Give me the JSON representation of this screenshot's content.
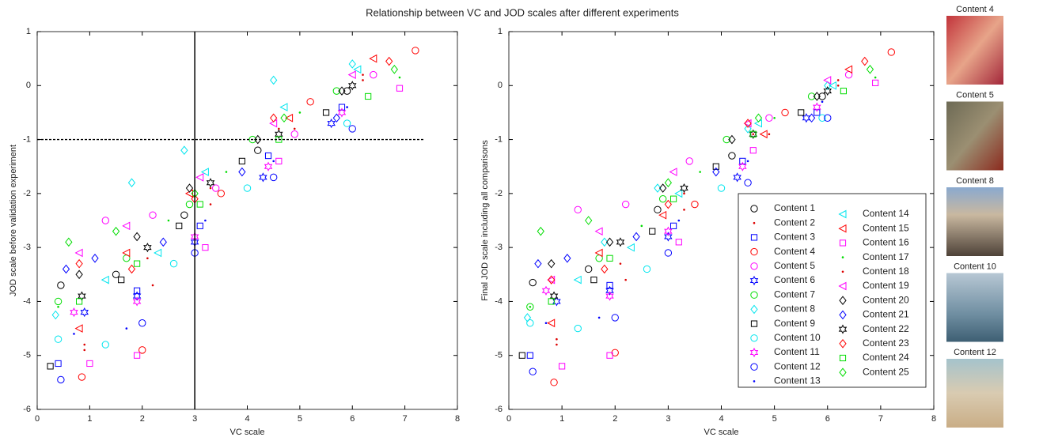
{
  "title": "Relationship between VC and JOD scales after different experiments",
  "chart_data": [
    {
      "type": "scatter",
      "xlabel": "VC scale",
      "ylabel": "JOD scale before validation experiment",
      "xlim": [
        0,
        8
      ],
      "ylim": [
        -6,
        1
      ],
      "xticks": [
        0,
        1,
        2,
        3,
        4,
        5,
        6,
        7,
        8
      ],
      "yticks": [
        -6,
        -5,
        -4,
        -3,
        -2,
        -1,
        0,
        1
      ],
      "vline": 3,
      "hline": -1,
      "series": [
        {
          "color": "#000000",
          "marker": "circle",
          "x": [
            0.45,
            1.5,
            2.8,
            4.2,
            5.9
          ],
          "y": [
            -3.7,
            -3.5,
            -2.4,
            -1.2,
            -0.1
          ]
        },
        {
          "color": "#dd0000",
          "marker": "dot",
          "x": [
            0.9,
            2.1,
            3.3,
            4.6,
            6.2
          ],
          "y": [
            -4.9,
            -3.2,
            -1.9,
            -0.8,
            0.1
          ]
        },
        {
          "color": "#0000ff",
          "marker": "square",
          "x": [
            0.4,
            1.9,
            3.1,
            4.4,
            5.8
          ],
          "y": [
            -5.15,
            -3.8,
            -2.6,
            -1.3,
            -0.4
          ]
        },
        {
          "color": "#ff0000",
          "marker": "circle",
          "x": [
            0.85,
            2.0,
            3.5,
            5.2,
            7.2
          ],
          "y": [
            -5.4,
            -4.9,
            -2.0,
            -0.3,
            0.65
          ]
        },
        {
          "color": "#ff00ff",
          "marker": "circle",
          "x": [
            1.3,
            2.2,
            3.4,
            4.9,
            6.4
          ],
          "y": [
            -2.5,
            -2.4,
            -1.9,
            -0.9,
            0.2
          ]
        },
        {
          "color": "#0000ff",
          "marker": "hexagram",
          "x": [
            0.9,
            1.9,
            3.0,
            4.3,
            5.6
          ],
          "y": [
            -4.2,
            -3.9,
            -2.9,
            -1.7,
            -0.7
          ]
        },
        {
          "color": "#00dd00",
          "marker": "circle",
          "x": [
            0.4,
            1.7,
            2.9,
            4.1,
            5.7
          ],
          "y": [
            -4.0,
            -3.2,
            -2.2,
            -1.0,
            -0.1
          ]
        },
        {
          "color": "#00e5ee",
          "marker": "diamond",
          "x": [
            0.35,
            1.8,
            2.8,
            4.5,
            6.0
          ],
          "y": [
            -4.25,
            -1.8,
            -1.2,
            0.1,
            0.4
          ]
        },
        {
          "color": "#000000",
          "marker": "square",
          "x": [
            0.25,
            1.6,
            2.7,
            3.9,
            5.5
          ],
          "y": [
            -5.2,
            -3.6,
            -2.6,
            -1.4,
            -0.5
          ]
        },
        {
          "color": "#00e5ee",
          "marker": "circle",
          "x": [
            0.4,
            1.3,
            2.6,
            4.0,
            5.9
          ],
          "y": [
            -4.7,
            -4.8,
            -3.3,
            -1.9,
            -0.7
          ]
        },
        {
          "color": "#ff00ff",
          "marker": "hexagram",
          "x": [
            0.7,
            1.9,
            3.0,
            4.4,
            5.8
          ],
          "y": [
            -4.2,
            -4.0,
            -2.8,
            -1.5,
            -0.5
          ]
        },
        {
          "color": "#0000ff",
          "marker": "circle",
          "x": [
            0.45,
            2.0,
            3.0,
            4.5,
            6.0
          ],
          "y": [
            -5.45,
            -4.4,
            -3.1,
            -1.7,
            -0.8
          ]
        },
        {
          "color": "#0000ff",
          "marker": "dot",
          "x": [
            0.7,
            1.7,
            3.2,
            4.5,
            5.9
          ],
          "y": [
            -4.6,
            -4.5,
            -2.5,
            -1.4,
            -0.4
          ]
        },
        {
          "color": "#00e5ee",
          "marker": "triangle-left",
          "x": [
            1.3,
            2.3,
            3.2,
            4.7,
            6.1
          ],
          "y": [
            -3.6,
            -3.1,
            -1.6,
            -0.4,
            0.3
          ]
        },
        {
          "color": "#ff0000",
          "marker": "triangle-left",
          "x": [
            0.8,
            1.7,
            2.9,
            4.8,
            6.4
          ],
          "y": [
            -4.5,
            -3.1,
            -2.0,
            -0.6,
            0.5
          ]
        },
        {
          "color": "#ff00ff",
          "marker": "square",
          "x": [
            1.0,
            1.9,
            3.2,
            4.6,
            6.9
          ],
          "y": [
            -5.15,
            -5.0,
            -3.0,
            -1.4,
            -0.05
          ]
        },
        {
          "color": "#00dd00",
          "marker": "dot",
          "x": [
            0.4,
            2.5,
            3.6,
            5.0,
            6.9
          ],
          "y": [
            -4.1,
            -2.5,
            -1.6,
            -0.5,
            0.15
          ]
        },
        {
          "color": "#dd0000",
          "marker": "dot",
          "x": [
            0.9,
            2.2,
            3.3,
            4.9,
            6.2
          ],
          "y": [
            -4.8,
            -3.7,
            -2.2,
            -0.8,
            0.2
          ]
        },
        {
          "color": "#ff00ff",
          "marker": "triangle-left",
          "x": [
            0.8,
            1.7,
            3.1,
            4.5,
            6.0
          ],
          "y": [
            -3.1,
            -2.6,
            -1.7,
            -0.7,
            0.2
          ]
        },
        {
          "color": "#000000",
          "marker": "diamond",
          "x": [
            0.8,
            1.9,
            2.9,
            4.2,
            5.8
          ],
          "y": [
            -3.5,
            -2.8,
            -1.9,
            -1.0,
            -0.1
          ]
        },
        {
          "color": "#0000ff",
          "marker": "diamond",
          "x": [
            0.55,
            1.1,
            2.4,
            3.9,
            5.7
          ],
          "y": [
            -3.4,
            -3.2,
            -2.9,
            -1.6,
            -0.6
          ]
        },
        {
          "color": "#000000",
          "marker": "hexagram",
          "x": [
            0.85,
            2.1,
            3.3,
            4.6,
            6.0
          ],
          "y": [
            -3.9,
            -3.0,
            -1.8,
            -0.9,
            0.0
          ]
        },
        {
          "color": "#ff0000",
          "marker": "diamond",
          "x": [
            0.8,
            1.8,
            3.0,
            4.5,
            6.7
          ],
          "y": [
            -3.3,
            -3.4,
            -2.1,
            -0.6,
            0.45
          ]
        },
        {
          "color": "#00dd00",
          "marker": "square",
          "x": [
            0.8,
            1.9,
            3.1,
            4.6,
            6.3
          ],
          "y": [
            -4.0,
            -3.3,
            -2.2,
            -1.0,
            -0.2
          ]
        },
        {
          "color": "#00dd00",
          "marker": "diamond",
          "x": [
            0.6,
            1.5,
            3.0,
            4.7,
            6.8
          ],
          "y": [
            -2.9,
            -2.7,
            -2.0,
            -0.6,
            0.3
          ]
        }
      ]
    },
    {
      "type": "scatter",
      "xlabel": "VC scale",
      "ylabel": "Final JOD scale including all comparisons",
      "xlim": [
        0,
        8
      ],
      "ylim": [
        -6,
        1
      ],
      "xticks": [
        0,
        1,
        2,
        3,
        4,
        5,
        6,
        7,
        8
      ],
      "yticks": [
        -6,
        -5,
        -4,
        -3,
        -2,
        -1,
        0,
        1
      ],
      "legend": "inside-lower-right",
      "series": [
        {
          "name": "Content 1",
          "color": "#000000",
          "marker": "circle",
          "x": [
            0.45,
            1.5,
            2.8,
            4.2,
            5.9
          ],
          "y": [
            -3.65,
            -3.4,
            -2.3,
            -1.3,
            -0.2
          ]
        },
        {
          "name": "Content 2",
          "color": "#dd0000",
          "marker": "dot",
          "x": [
            0.9,
            2.1,
            3.3,
            4.6,
            6.2
          ],
          "y": [
            -4.8,
            -3.3,
            -2.0,
            -0.9,
            0.0
          ]
        },
        {
          "name": "Content 3",
          "color": "#0000ff",
          "marker": "square",
          "x": [
            0.4,
            1.9,
            3.1,
            4.4,
            5.8
          ],
          "y": [
            -5.0,
            -3.7,
            -2.6,
            -1.4,
            -0.5
          ]
        },
        {
          "name": "Content 4",
          "color": "#ff0000",
          "marker": "circle",
          "x": [
            0.85,
            2.0,
            3.5,
            5.2,
            7.2
          ],
          "y": [
            -5.5,
            -4.95,
            -2.2,
            -0.5,
            0.62
          ]
        },
        {
          "name": "Content 5",
          "color": "#ff00ff",
          "marker": "circle",
          "x": [
            1.3,
            2.2,
            3.4,
            4.9,
            6.4
          ],
          "y": [
            -2.3,
            -2.2,
            -1.4,
            -0.6,
            0.2
          ]
        },
        {
          "name": "Content 6",
          "color": "#0000ff",
          "marker": "hexagram",
          "x": [
            0.9,
            1.9,
            3.0,
            4.3,
            5.6
          ],
          "y": [
            -4.0,
            -3.8,
            -2.8,
            -1.7,
            -0.6
          ]
        },
        {
          "name": "Content 7",
          "color": "#00dd00",
          "marker": "circle",
          "x": [
            0.4,
            1.7,
            2.9,
            4.1,
            5.7
          ],
          "y": [
            -4.1,
            -3.2,
            -2.1,
            -1.0,
            -0.2
          ]
        },
        {
          "name": "Content 8",
          "color": "#00e5ee",
          "marker": "diamond",
          "x": [
            0.35,
            1.8,
            2.8,
            4.5,
            6.0
          ],
          "y": [
            -4.3,
            -2.9,
            -1.9,
            -0.8,
            0.0
          ]
        },
        {
          "name": "Content 9",
          "color": "#000000",
          "marker": "square",
          "x": [
            0.25,
            1.6,
            2.7,
            3.9,
            5.5
          ],
          "y": [
            -5.0,
            -3.6,
            -2.7,
            -1.5,
            -0.5
          ]
        },
        {
          "name": "Content 10",
          "color": "#00e5ee",
          "marker": "circle",
          "x": [
            0.4,
            1.3,
            2.6,
            4.0,
            5.9
          ],
          "y": [
            -4.4,
            -4.5,
            -3.4,
            -1.9,
            -0.6
          ]
        },
        {
          "name": "Content 11",
          "color": "#ff00ff",
          "marker": "hexagram",
          "x": [
            0.7,
            1.9,
            3.0,
            4.4,
            5.8
          ],
          "y": [
            -3.8,
            -3.9,
            -2.7,
            -1.5,
            -0.4
          ]
        },
        {
          "name": "Content 12",
          "color": "#0000ff",
          "marker": "circle",
          "x": [
            0.45,
            2.0,
            3.0,
            4.5,
            6.0
          ],
          "y": [
            -5.3,
            -4.3,
            -3.1,
            -1.8,
            -0.6
          ]
        },
        {
          "name": "Content 13",
          "color": "#0000ff",
          "marker": "dot",
          "x": [
            0.7,
            1.7,
            3.2,
            4.5,
            5.9
          ],
          "y": [
            -4.4,
            -4.3,
            -2.5,
            -1.4,
            -0.3
          ]
        },
        {
          "name": "Content 14",
          "color": "#00e5ee",
          "marker": "triangle-left",
          "x": [
            1.3,
            2.3,
            3.2,
            4.7,
            6.1
          ],
          "y": [
            -3.6,
            -3.0,
            -2.0,
            -0.7,
            0.0
          ]
        },
        {
          "name": "Content 15",
          "color": "#ff0000",
          "marker": "triangle-left",
          "x": [
            0.8,
            1.7,
            2.9,
            4.8,
            6.4
          ],
          "y": [
            -4.4,
            -3.1,
            -2.4,
            -0.9,
            0.3
          ]
        },
        {
          "name": "Content 16",
          "color": "#ff00ff",
          "marker": "square",
          "x": [
            1.0,
            1.9,
            3.2,
            4.6,
            6.9
          ],
          "y": [
            -5.2,
            -5.0,
            -2.9,
            -1.2,
            0.05
          ]
        },
        {
          "name": "Content 17",
          "color": "#00dd00",
          "marker": "dot",
          "x": [
            0.4,
            2.5,
            3.6,
            5.0,
            6.9
          ],
          "y": [
            -4.1,
            -2.6,
            -1.6,
            -0.6,
            0.15
          ]
        },
        {
          "name": "Content 18",
          "color": "#dd0000",
          "marker": "dot",
          "x": [
            0.9,
            2.2,
            3.3,
            4.9,
            6.2
          ],
          "y": [
            -4.7,
            -3.6,
            -2.3,
            -0.9,
            0.1
          ]
        },
        {
          "name": "Content 19",
          "color": "#ff00ff",
          "marker": "triangle-left",
          "x": [
            0.8,
            1.7,
            3.1,
            4.5,
            6.0
          ],
          "y": [
            -3.6,
            -2.7,
            -1.6,
            -0.7,
            0.1
          ]
        },
        {
          "name": "Content 20",
          "color": "#000000",
          "marker": "diamond",
          "x": [
            0.8,
            1.9,
            2.9,
            4.2,
            5.8
          ],
          "y": [
            -3.3,
            -2.9,
            -1.9,
            -1.0,
            -0.2
          ]
        },
        {
          "name": "Content 21",
          "color": "#0000ff",
          "marker": "diamond",
          "x": [
            0.55,
            1.1,
            2.4,
            3.9,
            5.7
          ],
          "y": [
            -3.3,
            -3.2,
            -2.8,
            -1.6,
            -0.6
          ]
        },
        {
          "name": "Content 22",
          "color": "#000000",
          "marker": "hexagram",
          "x": [
            0.85,
            2.1,
            3.3,
            4.6,
            6.0
          ],
          "y": [
            -3.9,
            -2.9,
            -1.9,
            -0.9,
            -0.1
          ]
        },
        {
          "name": "Content 23",
          "color": "#ff0000",
          "marker": "diamond",
          "x": [
            0.8,
            1.8,
            3.0,
            4.5,
            6.7
          ],
          "y": [
            -3.6,
            -3.4,
            -2.2,
            -0.7,
            0.45
          ]
        },
        {
          "name": "Content 24",
          "color": "#00dd00",
          "marker": "square",
          "x": [
            0.8,
            1.9,
            3.1,
            4.6,
            6.3
          ],
          "y": [
            -4.0,
            -3.2,
            -2.1,
            -0.9,
            -0.1
          ]
        },
        {
          "name": "Content 25",
          "color": "#00dd00",
          "marker": "diamond",
          "x": [
            0.6,
            1.5,
            3.0,
            4.7,
            6.8
          ],
          "y": [
            -2.7,
            -2.5,
            -1.8,
            -0.6,
            0.3
          ]
        }
      ]
    }
  ],
  "thumbnails": [
    {
      "label": "Content 4"
    },
    {
      "label": "Content 5"
    },
    {
      "label": "Content 8"
    },
    {
      "label": "Content 10"
    },
    {
      "label": "Content 12"
    }
  ]
}
